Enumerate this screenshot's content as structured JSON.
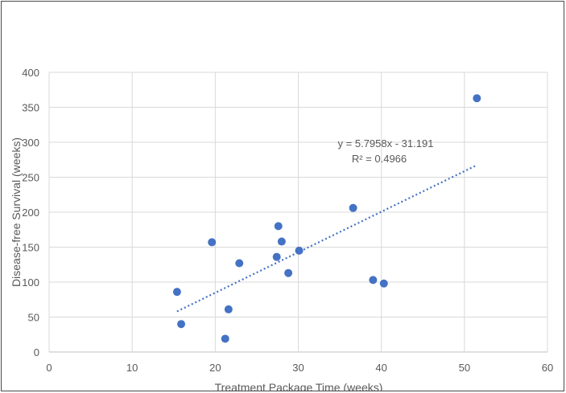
{
  "chart_data": {
    "type": "scatter",
    "title": "",
    "xlabel": "Treatment Package Time (weeks)",
    "ylabel": "Disease-free Survival (weeks)",
    "xlim": [
      0,
      60
    ],
    "ylim": [
      0,
      400
    ],
    "x_ticks": [
      0,
      10,
      20,
      30,
      40,
      50,
      60
    ],
    "y_ticks": [
      0,
      50,
      100,
      150,
      200,
      250,
      300,
      350,
      400
    ],
    "x_tick_labels": [
      "0",
      "10",
      "20",
      "30",
      "40",
      "50",
      "60"
    ],
    "y_tick_labels": [
      "0",
      "50",
      "100",
      "150",
      "200",
      "250",
      "300",
      "350",
      "400"
    ],
    "grid": true,
    "point_color": "#4472C4",
    "trendline_color": "#4472C4",
    "points": [
      {
        "x": 15.4,
        "y": 86
      },
      {
        "x": 15.9,
        "y": 40
      },
      {
        "x": 19.6,
        "y": 157
      },
      {
        "x": 21.2,
        "y": 19
      },
      {
        "x": 21.6,
        "y": 61
      },
      {
        "x": 22.9,
        "y": 127
      },
      {
        "x": 27.4,
        "y": 136
      },
      {
        "x": 27.6,
        "y": 180
      },
      {
        "x": 28.0,
        "y": 158
      },
      {
        "x": 28.8,
        "y": 113
      },
      {
        "x": 30.1,
        "y": 145
      },
      {
        "x": 36.6,
        "y": 206
      },
      {
        "x": 39.0,
        "y": 103
      },
      {
        "x": 40.3,
        "y": 98
      },
      {
        "x": 51.5,
        "y": 363
      }
    ],
    "trendline": {
      "type": "linear",
      "x_range": [
        15.4,
        51.5
      ],
      "slope": 5.7958,
      "intercept": -31.191,
      "equation_label": "y = 5.7958x - 31.191",
      "r2_label": "R² = 0.4966"
    }
  }
}
